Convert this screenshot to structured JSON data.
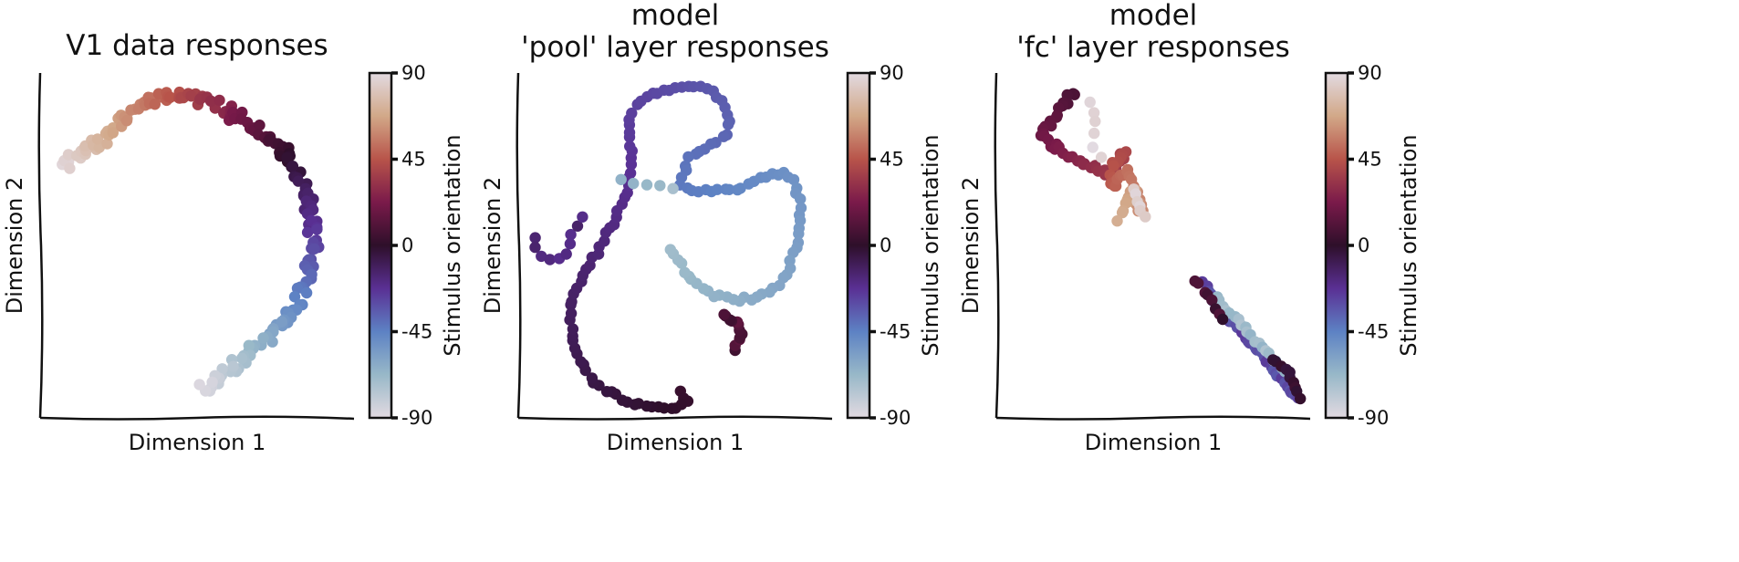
{
  "colormap": {
    "name": "twilight",
    "stops": [
      {
        "v": 90,
        "color": "#e2dae1"
      },
      {
        "v": 67.5,
        "color": "#d2a888"
      },
      {
        "v": 45,
        "color": "#b8544a"
      },
      {
        "v": 22.5,
        "color": "#7a1a4a"
      },
      {
        "v": 0,
        "color": "#2e0f2a"
      },
      {
        "v": -22.5,
        "color": "#5a3094"
      },
      {
        "v": -45,
        "color": "#5d82c4"
      },
      {
        "v": -67.5,
        "color": "#98b8c8"
      },
      {
        "v": -90,
        "color": "#e2dae1"
      }
    ]
  },
  "chart_data": [
    {
      "type": "scatter",
      "title": "V1 data responses",
      "xlabel": "Dimension 1",
      "ylabel": "Dimension 2",
      "colorbar": {
        "label": "Stimulus orientation",
        "ticks": [
          90,
          45,
          0,
          -45,
          -90
        ],
        "range": [
          -90,
          90
        ]
      },
      "xlim": [
        0,
        100
      ],
      "ylim": [
        0,
        100
      ],
      "curve": {
        "points": [
          [
            8,
            72
          ],
          [
            12,
            76
          ],
          [
            18,
            79
          ],
          [
            24,
            84
          ],
          [
            30,
            89
          ],
          [
            36,
            92
          ],
          [
            42,
            94
          ],
          [
            48,
            93
          ],
          [
            54,
            91
          ],
          [
            60,
            89
          ],
          [
            66,
            86
          ],
          [
            72,
            82
          ],
          [
            77,
            78
          ],
          [
            81,
            73
          ],
          [
            84,
            67
          ],
          [
            86,
            61
          ],
          [
            87,
            55
          ],
          [
            87,
            50
          ],
          [
            86,
            45
          ],
          [
            85,
            40
          ],
          [
            83,
            35
          ],
          [
            80,
            31
          ],
          [
            76,
            27
          ],
          [
            72,
            23
          ],
          [
            67,
            19
          ],
          [
            62,
            15
          ],
          [
            58,
            12
          ],
          [
            55,
            10
          ],
          [
            52,
            8
          ]
        ],
        "v_start": 88,
        "v_end": -88,
        "n": 185,
        "jitter": 1.8,
        "seed": 7
      }
    },
    {
      "type": "scatter",
      "title": "model\n'pool' layer responses",
      "xlabel": "Dimension 1",
      "ylabel": "Dimension 2",
      "colorbar": {
        "label": "Stimulus orientation",
        "ticks": [
          90,
          45,
          0,
          -45,
          -90
        ],
        "range": [
          -90,
          90
        ]
      },
      "xlim": [
        0,
        100
      ],
      "ylim": [
        0,
        100
      ],
      "curve": {
        "points": [
          [
            52,
            8
          ],
          [
            54,
            4
          ],
          [
            50,
            3
          ],
          [
            44,
            3
          ],
          [
            38,
            4
          ],
          [
            32,
            6
          ],
          [
            26,
            9
          ],
          [
            21,
            14
          ],
          [
            18,
            20
          ],
          [
            17,
            27
          ],
          [
            17,
            33
          ],
          [
            19,
            38
          ],
          [
            22,
            43
          ],
          [
            25,
            48
          ],
          [
            28,
            53
          ],
          [
            31,
            58
          ],
          [
            33,
            63
          ],
          [
            35,
            67
          ],
          [
            36,
            71
          ],
          [
            36,
            76
          ],
          [
            35,
            82
          ],
          [
            36,
            88
          ],
          [
            40,
            93
          ],
          [
            46,
            95
          ],
          [
            52,
            96
          ],
          [
            58,
            96
          ],
          [
            63,
            94
          ],
          [
            66,
            90
          ],
          [
            67,
            86
          ],
          [
            66,
            82
          ],
          [
            62,
            79
          ],
          [
            58,
            77
          ],
          [
            55,
            76
          ],
          [
            53,
            72
          ],
          [
            52,
            68
          ],
          [
            56,
            66
          ],
          [
            62,
            66
          ],
          [
            68,
            66
          ],
          [
            74,
            68
          ],
          [
            79,
            70
          ],
          [
            83,
            71
          ],
          [
            87,
            70
          ],
          [
            89,
            65
          ],
          [
            90,
            58
          ],
          [
            89,
            50
          ],
          [
            86,
            43
          ],
          [
            82,
            38
          ],
          [
            76,
            35
          ],
          [
            69,
            34
          ],
          [
            61,
            36
          ],
          [
            55,
            40
          ],
          [
            51,
            45
          ],
          [
            48,
            49
          ]
        ],
        "v_start": 3,
        "v_end": -70,
        "n": 150,
        "jitter": 0.6,
        "seed": 11
      },
      "extra": [
        {
          "points": [
            [
              69,
              20
            ],
            [
              70,
              22
            ],
            [
              71,
              24
            ],
            [
              71,
              26
            ],
            [
              69,
              28
            ],
            [
              67,
              29
            ],
            [
              65,
              30
            ]
          ],
          "v": 10,
          "n": 12
        },
        {
          "points": [
            [
              5,
              52
            ],
            [
              6,
              49
            ],
            [
              7,
              47
            ],
            [
              11,
              46
            ],
            [
              15,
              46
            ],
            [
              18,
              55
            ],
            [
              20,
              58
            ]
          ],
          "v": -18,
          "n": 10
        },
        {
          "points": [
            [
              49,
              66
            ],
            [
              45,
              67
            ],
            [
              41,
              67
            ],
            [
              36,
              68
            ],
            [
              33,
              69
            ]
          ],
          "v": -68,
          "n": 5
        }
      ]
    },
    {
      "type": "scatter",
      "title": "model\n'fc' layer responses",
      "xlabel": "Dimension 1",
      "ylabel": "Dimension 2",
      "colorbar": {
        "label": "Stimulus orientation",
        "ticks": [
          90,
          45,
          0,
          -45,
          -90
        ],
        "range": [
          -90,
          90
        ]
      },
      "xlim": [
        0,
        100
      ],
      "ylim": [
        0,
        100
      ],
      "curve": {
        "points": [
          [
            25,
            95
          ],
          [
            22,
            91
          ],
          [
            19,
            87
          ],
          [
            16,
            84
          ],
          [
            14,
            82
          ],
          [
            16,
            80
          ],
          [
            20,
            78
          ],
          [
            25,
            75
          ],
          [
            30,
            73
          ],
          [
            35,
            71
          ],
          [
            38,
            72
          ],
          [
            40,
            75
          ],
          [
            41,
            78
          ],
          [
            40,
            76
          ],
          [
            37,
            73
          ],
          [
            36,
            69
          ],
          [
            38,
            67
          ],
          [
            40,
            70
          ],
          [
            42,
            72
          ],
          [
            43,
            69
          ],
          [
            44,
            66
          ],
          [
            45,
            63
          ],
          [
            46,
            60
          ],
          [
            45,
            64
          ],
          [
            43,
            66
          ],
          [
            41,
            63
          ],
          [
            40,
            60
          ],
          [
            39,
            58
          ]
        ],
        "v_start": 8,
        "v_end": 70,
        "n": 80,
        "jitter": 1.0,
        "seed": 19
      },
      "extra": [
        {
          "points": [
            [
              30,
              92
            ],
            [
              32,
              88
            ],
            [
              31,
              82
            ],
            [
              31,
              78
            ],
            [
              33,
              76
            ]
          ],
          "v": 88,
          "n": 6
        },
        {
          "points": [
            [
              44,
              66
            ],
            [
              45,
              63
            ],
            [
              46,
              60
            ],
            [
              47,
              58
            ]
          ],
          "v": 88,
          "n": 6
        },
        {
          "points": [
            [
              66,
              39
            ],
            [
              72,
              31
            ],
            [
              78,
              25
            ],
            [
              84,
              19
            ],
            [
              90,
              12
            ],
            [
              96,
              6
            ]
          ],
          "v": -30,
          "n": 40
        },
        {
          "points": [
            [
              70,
              35
            ],
            [
              75,
              30
            ],
            [
              80,
              25
            ],
            [
              85,
              20
            ],
            [
              92,
              14
            ]
          ],
          "v": -70,
          "n": 20
        },
        {
          "points": [
            [
              63,
              40
            ],
            [
              66,
              37
            ],
            [
              70,
              33
            ],
            [
              72,
              28
            ]
          ],
          "v": 5,
          "n": 8
        },
        {
          "points": [
            [
              88,
              17
            ],
            [
              92,
              15
            ],
            [
              95,
              10
            ],
            [
              97,
              6
            ]
          ],
          "v": 0,
          "n": 10
        }
      ]
    }
  ]
}
